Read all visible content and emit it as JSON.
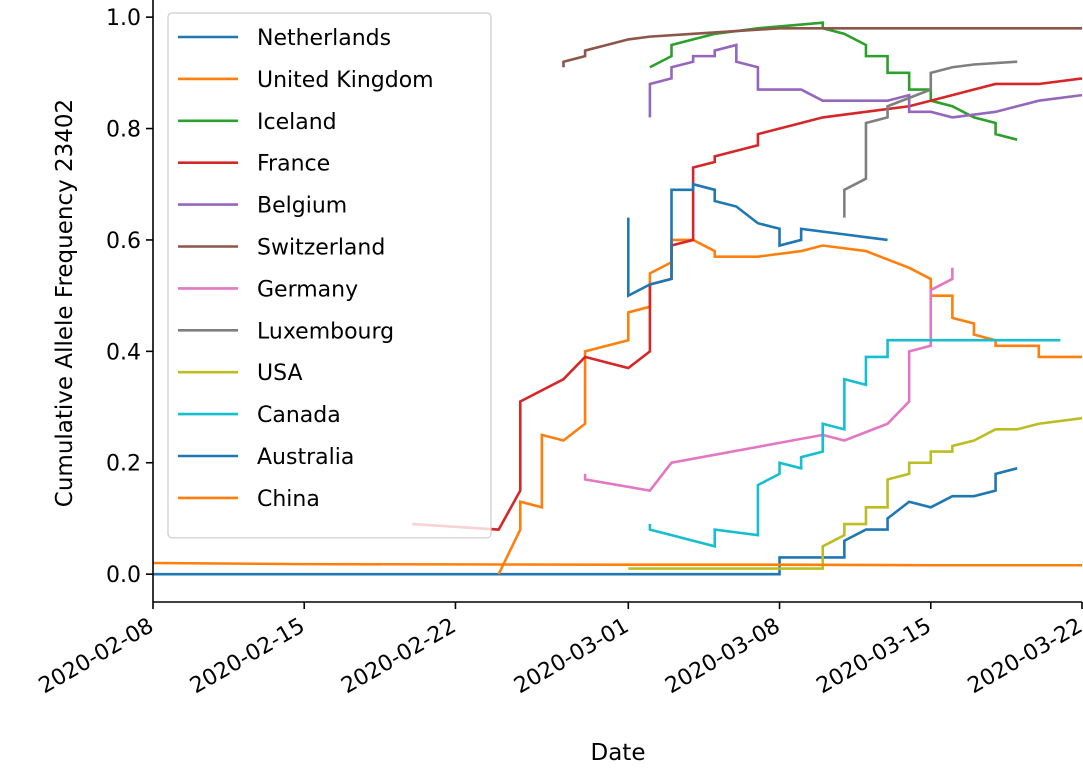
{
  "chart_data": {
    "type": "line",
    "xlabel": "Date",
    "ylabel": "Cumulative Allele Frequency 23402",
    "xlim": [
      "2020-02-08",
      "2020-03-22"
    ],
    "ylim": [
      -0.05,
      1.02
    ],
    "x_ticks": [
      "2020-02-08",
      "2020-02-15",
      "2020-02-22",
      "2020-03-01",
      "2020-03-08",
      "2020-03-15",
      "2020-03-22"
    ],
    "y_ticks": [
      0.0,
      0.2,
      0.4,
      0.6,
      0.8,
      1.0
    ],
    "y_tick_labels": [
      "0.0",
      "0.2",
      "0.4",
      "0.6",
      "0.8",
      "1.0"
    ],
    "legend_position": "upper-left",
    "grid": false,
    "series": [
      {
        "name": "Netherlands",
        "color": "#1f77b4",
        "points": [
          [
            "2020-02-08",
            0.0
          ],
          [
            "2020-03-08",
            0.0
          ],
          [
            "2020-03-08",
            0.03
          ],
          [
            "2020-03-10",
            0.03
          ],
          [
            "2020-03-11",
            0.03
          ],
          [
            "2020-03-11",
            0.06
          ],
          [
            "2020-03-12",
            0.08
          ],
          [
            "2020-03-13",
            0.08
          ],
          [
            "2020-03-13",
            0.1
          ],
          [
            "2020-03-14",
            0.13
          ],
          [
            "2020-03-15",
            0.12
          ],
          [
            "2020-03-16",
            0.14
          ],
          [
            "2020-03-17",
            0.14
          ],
          [
            "2020-03-18",
            0.15
          ],
          [
            "2020-03-18",
            0.18
          ],
          [
            "2020-03-19",
            0.19
          ]
        ]
      },
      {
        "name": "United Kingdom",
        "color": "#ff7f0e",
        "points": [
          [
            "2020-02-24",
            0.0
          ],
          [
            "2020-02-25",
            0.08
          ],
          [
            "2020-02-25",
            0.13
          ],
          [
            "2020-02-26",
            0.12
          ],
          [
            "2020-02-26",
            0.25
          ],
          [
            "2020-02-27",
            0.24
          ],
          [
            "2020-02-28",
            0.27
          ],
          [
            "2020-02-28",
            0.4
          ],
          [
            "2020-03-01",
            0.42
          ],
          [
            "2020-03-01",
            0.47
          ],
          [
            "2020-03-02",
            0.48
          ],
          [
            "2020-03-02",
            0.54
          ],
          [
            "2020-03-03",
            0.56
          ],
          [
            "2020-03-03",
            0.6
          ],
          [
            "2020-03-04",
            0.6
          ],
          [
            "2020-03-05",
            0.58
          ],
          [
            "2020-03-05",
            0.57
          ],
          [
            "2020-03-07",
            0.57
          ],
          [
            "2020-03-09",
            0.58
          ],
          [
            "2020-03-10",
            0.59
          ],
          [
            "2020-03-12",
            0.58
          ],
          [
            "2020-03-14",
            0.55
          ],
          [
            "2020-03-15",
            0.53
          ],
          [
            "2020-03-15",
            0.5
          ],
          [
            "2020-03-16",
            0.5
          ],
          [
            "2020-03-16",
            0.46
          ],
          [
            "2020-03-17",
            0.45
          ],
          [
            "2020-03-17",
            0.43
          ],
          [
            "2020-03-18",
            0.42
          ],
          [
            "2020-03-18",
            0.41
          ],
          [
            "2020-03-20",
            0.41
          ],
          [
            "2020-03-20",
            0.39
          ],
          [
            "2020-03-22",
            0.39
          ]
        ]
      },
      {
        "name": "Iceland",
        "color": "#2ca02c",
        "points": [
          [
            "2020-03-02",
            0.91
          ],
          [
            "2020-03-03",
            0.93
          ],
          [
            "2020-03-03",
            0.95
          ],
          [
            "2020-03-04",
            0.96
          ],
          [
            "2020-03-05",
            0.97
          ],
          [
            "2020-03-07",
            0.98
          ],
          [
            "2020-03-10",
            0.99
          ],
          [
            "2020-03-10",
            0.98
          ],
          [
            "2020-03-11",
            0.97
          ],
          [
            "2020-03-12",
            0.95
          ],
          [
            "2020-03-12",
            0.93
          ],
          [
            "2020-03-13",
            0.93
          ],
          [
            "2020-03-13",
            0.9
          ],
          [
            "2020-03-14",
            0.9
          ],
          [
            "2020-03-14",
            0.87
          ],
          [
            "2020-03-15",
            0.87
          ],
          [
            "2020-03-15",
            0.85
          ],
          [
            "2020-03-16",
            0.84
          ],
          [
            "2020-03-17",
            0.82
          ],
          [
            "2020-03-18",
            0.81
          ],
          [
            "2020-03-18",
            0.79
          ],
          [
            "2020-03-19",
            0.78
          ]
        ]
      },
      {
        "name": "France",
        "color": "#d62728",
        "points": [
          [
            "2020-02-20",
            0.09
          ],
          [
            "2020-02-24",
            0.08
          ],
          [
            "2020-02-25",
            0.15
          ],
          [
            "2020-02-25",
            0.31
          ],
          [
            "2020-02-27",
            0.35
          ],
          [
            "2020-02-28",
            0.39
          ],
          [
            "2020-03-01",
            0.37
          ],
          [
            "2020-03-02",
            0.4
          ],
          [
            "2020-03-02",
            0.52
          ],
          [
            "2020-03-03",
            0.53
          ],
          [
            "2020-03-03",
            0.59
          ],
          [
            "2020-03-04",
            0.6
          ],
          [
            "2020-03-04",
            0.73
          ],
          [
            "2020-03-05",
            0.74
          ],
          [
            "2020-03-05",
            0.75
          ],
          [
            "2020-03-07",
            0.77
          ],
          [
            "2020-03-07",
            0.79
          ],
          [
            "2020-03-09",
            0.81
          ],
          [
            "2020-03-10",
            0.82
          ],
          [
            "2020-03-12",
            0.83
          ],
          [
            "2020-03-14",
            0.84
          ],
          [
            "2020-03-16",
            0.86
          ],
          [
            "2020-03-17",
            0.87
          ],
          [
            "2020-03-18",
            0.88
          ],
          [
            "2020-03-20",
            0.88
          ],
          [
            "2020-03-22",
            0.89
          ]
        ]
      },
      {
        "name": "Belgium",
        "color": "#9467bd",
        "points": [
          [
            "2020-03-02",
            0.82
          ],
          [
            "2020-03-02",
            0.88
          ],
          [
            "2020-03-03",
            0.89
          ],
          [
            "2020-03-03",
            0.91
          ],
          [
            "2020-03-04",
            0.92
          ],
          [
            "2020-03-04",
            0.93
          ],
          [
            "2020-03-05",
            0.93
          ],
          [
            "2020-03-05",
            0.94
          ],
          [
            "2020-03-06",
            0.95
          ],
          [
            "2020-03-06",
            0.92
          ],
          [
            "2020-03-07",
            0.91
          ],
          [
            "2020-03-07",
            0.87
          ],
          [
            "2020-03-09",
            0.87
          ],
          [
            "2020-03-10",
            0.85
          ],
          [
            "2020-03-13",
            0.85
          ],
          [
            "2020-03-14",
            0.86
          ],
          [
            "2020-03-14",
            0.83
          ],
          [
            "2020-03-15",
            0.83
          ],
          [
            "2020-03-16",
            0.82
          ],
          [
            "2020-03-18",
            0.83
          ],
          [
            "2020-03-20",
            0.85
          ],
          [
            "2020-03-22",
            0.86
          ]
        ]
      },
      {
        "name": "Switzerland",
        "color": "#8c564b",
        "points": [
          [
            "2020-02-27",
            0.91
          ],
          [
            "2020-02-27",
            0.92
          ],
          [
            "2020-02-28",
            0.93
          ],
          [
            "2020-02-28",
            0.94
          ],
          [
            "2020-02-29",
            0.95
          ],
          [
            "2020-03-01",
            0.96
          ],
          [
            "2020-03-02",
            0.965
          ],
          [
            "2020-03-04",
            0.97
          ],
          [
            "2020-03-06",
            0.975
          ],
          [
            "2020-03-08",
            0.98
          ],
          [
            "2020-03-15",
            0.98
          ],
          [
            "2020-03-22",
            0.98
          ]
        ]
      },
      {
        "name": "Germany",
        "color": "#e377c2",
        "points": [
          [
            "2020-02-28",
            0.18
          ],
          [
            "2020-02-28",
            0.17
          ],
          [
            "2020-03-02",
            0.15
          ],
          [
            "2020-03-03",
            0.2
          ],
          [
            "2020-03-10",
            0.25
          ],
          [
            "2020-03-11",
            0.24
          ],
          [
            "2020-03-13",
            0.27
          ],
          [
            "2020-03-14",
            0.31
          ],
          [
            "2020-03-14",
            0.4
          ],
          [
            "2020-03-15",
            0.41
          ],
          [
            "2020-03-15",
            0.51
          ],
          [
            "2020-03-16",
            0.53
          ],
          [
            "2020-03-16",
            0.55
          ]
        ]
      },
      {
        "name": "Luxembourg",
        "color": "#7f7f7f",
        "points": [
          [
            "2020-03-11",
            0.64
          ],
          [
            "2020-03-11",
            0.69
          ],
          [
            "2020-03-12",
            0.71
          ],
          [
            "2020-03-12",
            0.81
          ],
          [
            "2020-03-13",
            0.82
          ],
          [
            "2020-03-13",
            0.84
          ],
          [
            "2020-03-15",
            0.87
          ],
          [
            "2020-03-15",
            0.9
          ],
          [
            "2020-03-16",
            0.91
          ],
          [
            "2020-03-17",
            0.915
          ],
          [
            "2020-03-19",
            0.92
          ]
        ]
      },
      {
        "name": "USA",
        "color": "#bcbd22",
        "points": [
          [
            "2020-03-01",
            0.01
          ],
          [
            "2020-03-10",
            0.01
          ],
          [
            "2020-03-10",
            0.05
          ],
          [
            "2020-03-11",
            0.07
          ],
          [
            "2020-03-11",
            0.09
          ],
          [
            "2020-03-12",
            0.09
          ],
          [
            "2020-03-12",
            0.12
          ],
          [
            "2020-03-13",
            0.12
          ],
          [
            "2020-03-13",
            0.17
          ],
          [
            "2020-03-14",
            0.18
          ],
          [
            "2020-03-14",
            0.2
          ],
          [
            "2020-03-15",
            0.2
          ],
          [
            "2020-03-15",
            0.22
          ],
          [
            "2020-03-16",
            0.22
          ],
          [
            "2020-03-16",
            0.23
          ],
          [
            "2020-03-17",
            0.24
          ],
          [
            "2020-03-18",
            0.26
          ],
          [
            "2020-03-19",
            0.26
          ],
          [
            "2020-03-20",
            0.27
          ],
          [
            "2020-03-22",
            0.28
          ]
        ]
      },
      {
        "name": "Canada",
        "color": "#17becf",
        "points": [
          [
            "2020-03-02",
            0.09
          ],
          [
            "2020-03-02",
            0.08
          ],
          [
            "2020-03-03",
            0.07
          ],
          [
            "2020-03-04",
            0.06
          ],
          [
            "2020-03-05",
            0.05
          ],
          [
            "2020-03-05",
            0.08
          ],
          [
            "2020-03-07",
            0.07
          ],
          [
            "2020-03-07",
            0.16
          ],
          [
            "2020-03-08",
            0.18
          ],
          [
            "2020-03-08",
            0.2
          ],
          [
            "2020-03-09",
            0.19
          ],
          [
            "2020-03-09",
            0.21
          ],
          [
            "2020-03-10",
            0.22
          ],
          [
            "2020-03-10",
            0.27
          ],
          [
            "2020-03-11",
            0.26
          ],
          [
            "2020-03-11",
            0.35
          ],
          [
            "2020-03-12",
            0.34
          ],
          [
            "2020-03-12",
            0.39
          ],
          [
            "2020-03-13",
            0.39
          ],
          [
            "2020-03-13",
            0.42
          ],
          [
            "2020-03-14",
            0.42
          ],
          [
            "2020-03-15",
            0.42
          ],
          [
            "2020-03-21",
            0.42
          ]
        ]
      },
      {
        "name": "Australia",
        "color": "#1f77b4",
        "points": [
          [
            "2020-03-01",
            0.64
          ],
          [
            "2020-03-01",
            0.5
          ],
          [
            "2020-03-02",
            0.52
          ],
          [
            "2020-03-03",
            0.53
          ],
          [
            "2020-03-03",
            0.69
          ],
          [
            "2020-03-04",
            0.69
          ],
          [
            "2020-03-04",
            0.7
          ],
          [
            "2020-03-05",
            0.69
          ],
          [
            "2020-03-05",
            0.67
          ],
          [
            "2020-03-06",
            0.66
          ],
          [
            "2020-03-07",
            0.63
          ],
          [
            "2020-03-08",
            0.62
          ],
          [
            "2020-03-08",
            0.59
          ],
          [
            "2020-03-09",
            0.6
          ],
          [
            "2020-03-09",
            0.62
          ],
          [
            "2020-03-11",
            0.61
          ],
          [
            "2020-03-12",
            0.605
          ],
          [
            "2020-03-13",
            0.6
          ]
        ]
      },
      {
        "name": "China",
        "color": "#ff7f0e",
        "points": [
          [
            "2020-02-08",
            0.02
          ],
          [
            "2020-02-15",
            0.018
          ],
          [
            "2020-02-29",
            0.017
          ],
          [
            "2020-03-08",
            0.017
          ],
          [
            "2020-03-15",
            0.016
          ],
          [
            "2020-03-22",
            0.016
          ]
        ]
      }
    ]
  }
}
